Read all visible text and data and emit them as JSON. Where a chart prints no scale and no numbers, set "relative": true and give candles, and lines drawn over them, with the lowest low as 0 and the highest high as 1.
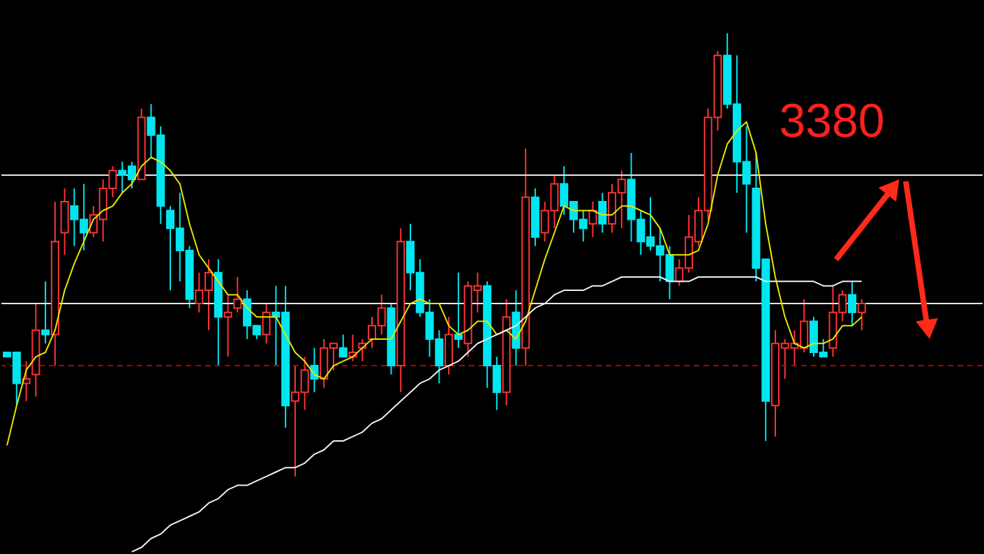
{
  "chart_data": {
    "type": "candlestick",
    "relative": true,
    "categories": [
      null,
      null,
      null,
      null,
      null,
      null,
      null,
      null,
      null,
      null,
      null,
      null,
      null,
      null,
      null,
      null,
      null,
      null,
      null,
      null,
      null,
      null,
      null,
      null,
      null,
      null,
      null,
      null,
      null,
      null,
      null,
      null,
      null,
      null,
      null,
      null,
      null,
      null,
      null,
      null,
      null,
      null,
      null,
      null,
      null,
      null,
      null,
      null,
      null,
      null,
      null,
      null,
      null,
      null,
      null,
      null,
      null,
      null,
      null,
      null,
      null,
      null,
      null,
      null,
      null,
      null,
      null,
      null,
      null,
      null,
      null,
      null,
      null,
      null,
      null,
      null,
      null,
      null,
      null,
      null,
      null,
      null,
      null,
      null,
      null,
      null,
      null,
      null,
      null,
      null
    ],
    "ohlc": [
      [
        0.28,
        0.28,
        0.27,
        0.27
      ],
      [
        0.28,
        0.28,
        0.16,
        0.21
      ],
      [
        0.21,
        0.26,
        0.17,
        0.22
      ],
      [
        0.23,
        0.39,
        0.18,
        0.33
      ],
      [
        0.33,
        0.44,
        0.3,
        0.32
      ],
      [
        0.32,
        0.62,
        0.25,
        0.53
      ],
      [
        0.55,
        0.65,
        0.5,
        0.62
      ],
      [
        0.61,
        0.65,
        0.52,
        0.58
      ],
      [
        0.58,
        0.66,
        0.51,
        0.55
      ],
      [
        0.55,
        0.61,
        0.54,
        0.59
      ],
      [
        0.58,
        0.67,
        0.53,
        0.65
      ],
      [
        0.65,
        0.7,
        0.63,
        0.69
      ],
      [
        0.69,
        0.71,
        0.64,
        0.68
      ],
      [
        0.7,
        0.71,
        0.65,
        0.67
      ],
      [
        0.67,
        0.83,
        0.67,
        0.81
      ],
      [
        0.81,
        0.84,
        0.72,
        0.77
      ],
      [
        0.77,
        0.79,
        0.57,
        0.61
      ],
      [
        0.6,
        0.61,
        0.42,
        0.56
      ],
      [
        0.56,
        0.64,
        0.44,
        0.51
      ],
      [
        0.51,
        0.52,
        0.38,
        0.4
      ],
      [
        0.39,
        0.46,
        0.37,
        0.42
      ],
      [
        0.42,
        0.49,
        0.33,
        0.46
      ],
      [
        0.46,
        0.49,
        0.25,
        0.36
      ],
      [
        0.36,
        0.41,
        0.27,
        0.37
      ],
      [
        0.38,
        0.45,
        0.37,
        0.4
      ],
      [
        0.4,
        0.42,
        0.31,
        0.34
      ],
      [
        0.34,
        0.34,
        0.31,
        0.32
      ],
      [
        0.32,
        0.39,
        0.3,
        0.37
      ],
      [
        0.37,
        0.43,
        0.25,
        0.36
      ],
      [
        0.37,
        0.43,
        0.11,
        0.16
      ],
      [
        0.17,
        0.25,
        0,
        0.19
      ],
      [
        0.19,
        0.27,
        0.15,
        0.24
      ],
      [
        0.25,
        0.29,
        0.19,
        0.22
      ],
      [
        0.22,
        0.31,
        0.2,
        0.29
      ],
      [
        0.29,
        0.3,
        0.24,
        0.3
      ],
      [
        0.29,
        0.32,
        0.27,
        0.27
      ],
      [
        0.27,
        0.32,
        0.26,
        0.28
      ],
      [
        0.29,
        0.31,
        0.26,
        0.3
      ],
      [
        0.31,
        0.36,
        0.29,
        0.34
      ],
      [
        0.34,
        0.41,
        0.32,
        0.38
      ],
      [
        0.38,
        0.39,
        0.23,
        0.25
      ],
      [
        0.25,
        0.56,
        0.19,
        0.53
      ],
      [
        0.53,
        0.57,
        0.42,
        0.46
      ],
      [
        0.46,
        0.49,
        0.36,
        0.37
      ],
      [
        0.37,
        0.4,
        0.27,
        0.31
      ],
      [
        0.31,
        0.33,
        0.21,
        0.25
      ],
      [
        0.25,
        0.36,
        0.23,
        0.32
      ],
      [
        0.32,
        0.46,
        0.29,
        0.31
      ],
      [
        0.3,
        0.44,
        0.27,
        0.43
      ],
      [
        0.42,
        0.46,
        0.37,
        0.43
      ],
      [
        0.43,
        0.44,
        0.2,
        0.25
      ],
      [
        0.25,
        0.27,
        0.15,
        0.19
      ],
      [
        0.19,
        0.4,
        0.16,
        0.36
      ],
      [
        0.37,
        0.42,
        0.25,
        0.29
      ],
      [
        0.29,
        0.74,
        0.25,
        0.63
      ],
      [
        0.63,
        0.65,
        0.52,
        0.54
      ],
      [
        0.55,
        0.62,
        0.53,
        0.6
      ],
      [
        0.6,
        0.68,
        0.56,
        0.66
      ],
      [
        0.66,
        0.7,
        0.59,
        0.61
      ],
      [
        0.62,
        0.62,
        0.55,
        0.58
      ],
      [
        0.58,
        0.6,
        0.53,
        0.56
      ],
      [
        0.57,
        0.62,
        0.54,
        0.6
      ],
      [
        0.62,
        0.64,
        0.55,
        0.57
      ],
      [
        0.57,
        0.66,
        0.55,
        0.64
      ],
      [
        0.64,
        0.69,
        0.56,
        0.67
      ],
      [
        0.67,
        0.73,
        0.53,
        0.58
      ],
      [
        0.58,
        0.6,
        0.5,
        0.53
      ],
      [
        0.54,
        0.63,
        0.51,
        0.52
      ],
      [
        0.52,
        0.56,
        0.44,
        0.5
      ],
      [
        0.5,
        0.52,
        0.4,
        0.44
      ],
      [
        0.44,
        0.49,
        0.43,
        0.47
      ],
      [
        0.47,
        0.59,
        0.46,
        0.54
      ],
      [
        0.53,
        0.63,
        0.52,
        0.6
      ],
      [
        0.6,
        0.83,
        0.58,
        0.81
      ],
      [
        0.81,
        0.96,
        0.78,
        0.95
      ],
      [
        0.95,
        1,
        0.83,
        0.84
      ],
      [
        0.84,
        0.95,
        0.64,
        0.71
      ],
      [
        0.71,
        0.79,
        0.55,
        0.66
      ],
      [
        0.65,
        0.73,
        0.44,
        0.47
      ],
      [
        0.49,
        0.49,
        0.08,
        0.17
      ],
      [
        0.16,
        0.33,
        0.09,
        0.3
      ],
      [
        0.29,
        0.31,
        0.22,
        0.3
      ],
      [
        0.29,
        0.33,
        0.25,
        0.3
      ],
      [
        0.29,
        0.4,
        0.28,
        0.35
      ],
      [
        0.35,
        0.36,
        0.27,
        0.28
      ],
      [
        0.28,
        0.31,
        0.27,
        0.27
      ],
      [
        0.29,
        0.43,
        0.27,
        0.37
      ],
      [
        0.37,
        0.42,
        0.35,
        0.41
      ],
      [
        0.41,
        0.44,
        0.34,
        0.37
      ],
      [
        0.37,
        0.4,
        0.33,
        0.39
      ]
    ],
    "colors": [
      "#00e6f0",
      "#00e6f0",
      "#ff3232",
      "#ff3232",
      "#00e6f0",
      "#ff3232",
      "#ff3232",
      "#00e6f0",
      "#00e6f0",
      "#ff3232",
      "#ff3232",
      "#ff3232",
      "#00e6f0",
      "#00e6f0",
      "#ff3232",
      "#00e6f0",
      "#00e6f0",
      "#00e6f0",
      "#00e6f0",
      "#00e6f0",
      "#ff3232",
      "#ff3232",
      "#00e6f0",
      "#ff3232",
      "#ff3232",
      "#00e6f0",
      "#00e6f0",
      "#ff3232",
      "#00e6f0",
      "#00e6f0",
      "#ff3232",
      "#ff3232",
      "#00e6f0",
      "#ff3232",
      "#ff3232",
      "#00e6f0",
      "#ff3232",
      "#ff3232",
      "#ff3232",
      "#ff3232",
      "#00e6f0",
      "#ff3232",
      "#00e6f0",
      "#00e6f0",
      "#00e6f0",
      "#00e6f0",
      "#ff3232",
      "#00e6f0",
      "#ff3232",
      "#ff3232",
      "#00e6f0",
      "#00e6f0",
      "#ff3232",
      "#00e6f0",
      "#ff3232",
      "#00e6f0",
      "#ff3232",
      "#ff3232",
      "#00e6f0",
      "#00e6f0",
      "#00e6f0",
      "#ff3232",
      "#00e6f0",
      "#ff3232",
      "#ff3232",
      "#00e6f0",
      "#00e6f0",
      "#00e6f0",
      "#00e6f0",
      "#00e6f0",
      "#ff3232",
      "#ff3232",
      "#ff3232",
      "#ff3232",
      "#ff3232",
      "#00e6f0",
      "#00e6f0",
      "#00e6f0",
      "#00e6f0",
      "#00e6f0",
      "#ff3232",
      "#ff3232",
      "#ff3232",
      "#ff3232",
      "#00e6f0",
      "#00e6f0",
      "#ff3232",
      "#ff3232",
      "#00e6f0",
      "#ff3232"
    ],
    "series": [
      {
        "type": "line",
        "color": "#e6e600",
        "values": [
          0.07,
          0.16,
          0.24,
          0.27,
          0.28,
          0.33,
          0.42,
          0.48,
          0.53,
          0.58,
          0.6,
          0.61,
          0.64,
          0.66,
          0.7,
          0.72,
          0.71,
          0.69,
          0.66,
          0.57,
          0.5,
          0.47,
          0.44,
          0.41,
          0.41,
          0.38,
          0.36,
          0.36,
          0.36,
          0.32,
          0.28,
          0.26,
          0.23,
          0.22,
          0.25,
          0.26,
          0.27,
          0.29,
          0.31,
          0.31,
          0.31,
          0.35,
          0.39,
          0.4,
          0.39,
          0.39,
          0.34,
          0.32,
          0.33,
          0.35,
          0.35,
          0.32,
          0.33,
          0.31,
          0.35,
          0.42,
          0.49,
          0.55,
          0.61,
          0.6,
          0.6,
          0.6,
          0.59,
          0.59,
          0.61,
          0.61,
          0.6,
          0.59,
          0.56,
          0.5,
          0.5,
          0.5,
          0.51,
          0.57,
          0.68,
          0.75,
          0.78,
          0.8,
          0.73,
          0.57,
          0.45,
          0.36,
          0.3,
          0.29,
          0.3,
          0.3,
          0.31,
          0.34,
          0.34,
          0.36
        ]
      },
      {
        "type": "line",
        "color": "#f0f0f0",
        "values": [
          null,
          null,
          null,
          null,
          null,
          null,
          null,
          null,
          null,
          null,
          null,
          null,
          null,
          -0.17,
          -0.16,
          -0.14,
          -0.13,
          -0.11,
          -0.1,
          -0.09,
          -0.08,
          -0.06,
          -0.05,
          -0.03,
          -0.02,
          -0.02,
          -0.01,
          0,
          0.01,
          0.02,
          0.02,
          0.03,
          0.05,
          0.06,
          0.08,
          0.08,
          0.09,
          0.1,
          0.12,
          0.13,
          0.15,
          0.17,
          0.19,
          0.21,
          0.22,
          0.24,
          0.25,
          0.26,
          0.28,
          0.3,
          0.31,
          0.32,
          0.33,
          0.34,
          0.36,
          0.38,
          0.39,
          0.41,
          0.42,
          0.42,
          0.42,
          0.43,
          0.43,
          0.44,
          0.45,
          0.45,
          0.45,
          0.45,
          0.45,
          0.44,
          0.44,
          0.44,
          0.45,
          0.45,
          0.45,
          0.45,
          0.45,
          0.45,
          0.45,
          0.44,
          0.44,
          0.44,
          0.44,
          0.44,
          0.44,
          0.43,
          0.43,
          0.44,
          0.44,
          0.44
        ]
      }
    ],
    "ref_lines": [
      {
        "axis": "y",
        "value": 0.68,
        "color": "#e6e6e6",
        "line_style": "solid"
      },
      {
        "axis": "y",
        "value": 0.25,
        "color": "#b00000",
        "line_style": "dashed"
      },
      {
        "axis": "y",
        "value": 0.39,
        "color": "#e6e6e6",
        "line_style": "solid"
      }
    ],
    "annotations": [
      "3380"
    ]
  }
}
